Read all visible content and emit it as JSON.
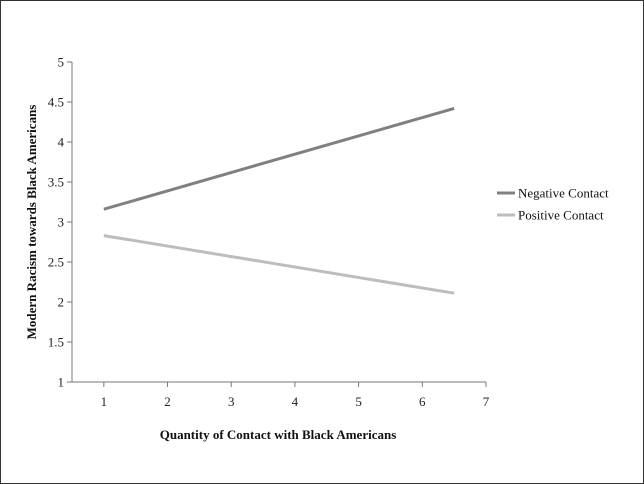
{
  "chart_data": {
    "type": "line",
    "title": "",
    "xlabel": "Quantity of Contact with Black Americans",
    "ylabel": "Modern Racism towards Black Americans",
    "xlim": [
      0.5,
      7
    ],
    "ylim": [
      1,
      5
    ],
    "xticks": [
      1,
      2,
      3,
      4,
      5,
      6,
      7
    ],
    "yticks": [
      1,
      1.5,
      2,
      2.5,
      3,
      3.5,
      4,
      4.5,
      5
    ],
    "grid": false,
    "legend_position": "right",
    "series": [
      {
        "name": "Negative Contact",
        "color": "#808080",
        "x": [
          1,
          6.5
        ],
        "y": [
          3.16,
          4.42
        ]
      },
      {
        "name": "Positive Contact",
        "color": "#bdbdbd",
        "x": [
          1,
          6.5
        ],
        "y": [
          2.83,
          2.11
        ]
      }
    ]
  }
}
